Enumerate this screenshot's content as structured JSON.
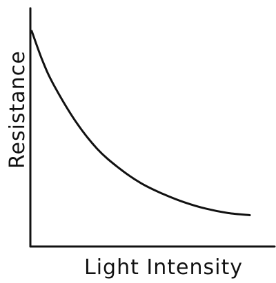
{
  "chart_data": {
    "type": "line",
    "title": "",
    "xlabel": "Light Intensity",
    "ylabel": "Resistance",
    "grid": false,
    "legend": "none",
    "colors": {
      "ink": "#111111",
      "background": "#ffffff"
    },
    "series": [
      {
        "values_description_free": true,
        "x": [
          0,
          0.5,
          1,
          2,
          3,
          4,
          5,
          6,
          7,
          8,
          9,
          10
        ],
        "y": [
          100,
          86,
          75,
          58,
          45,
          36,
          29,
          24,
          20,
          17,
          15,
          14
        ]
      }
    ],
    "xlim": [
      0,
      10
    ],
    "ylim": [
      0,
      110
    ]
  }
}
